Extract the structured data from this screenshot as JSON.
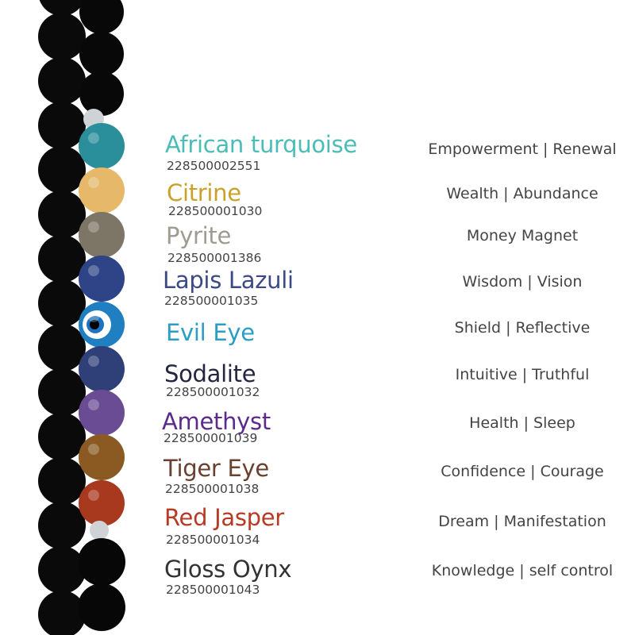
{
  "stones": [
    {
      "name": "African turquoise",
      "code": "228500002551",
      "meaning": "Empowerment | Renewal",
      "color": "#4cbdb6",
      "bead": "#2a8f9a"
    },
    {
      "name": "Citrine",
      "code": "228500001030",
      "meaning": "Wealth | Abundance",
      "color": "#c9a22a",
      "bead": "#e5b86a"
    },
    {
      "name": "Pyrite",
      "code": "228500001386",
      "meaning": "Money Magnet",
      "color": "#a09a90",
      "bead": "#7d7566"
    },
    {
      "name": "Lapis Lazuli",
      "code": "228500001035",
      "meaning": "Wisdom | Vision",
      "color": "#3b4a86",
      "bead": "#2e4487"
    },
    {
      "name": "Evil Eye",
      "code": "",
      "meaning": "Shield | Reflective",
      "color": "#2a9ec4",
      "bead": "#1f7fc0"
    },
    {
      "name": "Sodalite",
      "code": "228500001032",
      "meaning": "Intuitive | Truthful",
      "color": "#23263f",
      "bead": "#2f3f78"
    },
    {
      "name": "Amethyst",
      "code": "228500001039",
      "meaning": "Health | Sleep",
      "color": "#5b2a8c",
      "bead": "#6a4c94"
    },
    {
      "name": "Tiger Eye",
      "code": "228500001038",
      "meaning": "Confidence | Courage",
      "color": "#6a4030",
      "bead": "#8a5a22"
    },
    {
      "name": "Red Jasper",
      "code": "228500001034",
      "meaning": "Dream | Manifestation",
      "color": "#b83a24",
      "bead": "#a8391f"
    },
    {
      "name": "Gloss Oynx",
      "code": "228500001043",
      "meaning": "Knowledge | self control",
      "color": "#333333",
      "bead": "#111111"
    }
  ]
}
